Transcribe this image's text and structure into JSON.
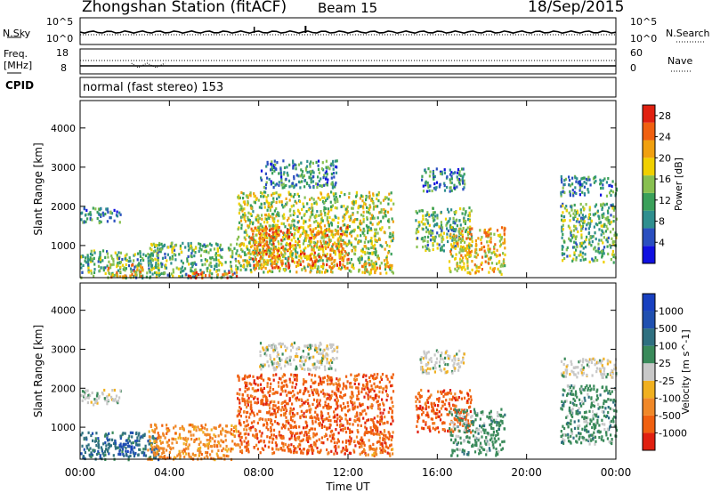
{
  "header": {
    "station": "Zhongshan Station (fitACF)",
    "beam": "Beam 15",
    "date": "18/Sep/2015"
  },
  "panels": {
    "nsky": {
      "label": "N.Sky",
      "right_label": "N.Search",
      "left_ticks": [
        "10^5",
        "10^0"
      ],
      "right_ticks": [
        "10^5",
        "10^0"
      ]
    },
    "freq": {
      "label_line1": "Freq.",
      "label_line2": "[MHz]",
      "right_label": "Nave",
      "left_ticks": [
        "18",
        "8"
      ],
      "right_ticks": [
        "60",
        "0"
      ]
    },
    "cpid": {
      "label": "CPID",
      "text": "normal (fast stereo) 153"
    }
  },
  "colors": {
    "power": [
      "#1010e0",
      "#2a4fc0",
      "#2f8f8f",
      "#3aa05a",
      "#88c050",
      "#f0d000",
      "#f0a010",
      "#f06010",
      "#e02010"
    ],
    "velocity": [
      "#e02010",
      "#f06010",
      "#f08828",
      "#f0b020",
      "#c8c8c8",
      "#3a8a5a",
      "#2f7080",
      "#2050b0",
      "#1840c0"
    ]
  },
  "chart_data": [
    {
      "type": "heatmap",
      "title": "",
      "xlabel": "",
      "ylabel": "Slant Range [km]",
      "x_ticks": [
        "00:00",
        "04:00",
        "08:00",
        "12:00",
        "16:00",
        "20:00",
        "00:00"
      ],
      "xlim_hours": [
        0,
        24
      ],
      "ylim": [
        180,
        4700
      ],
      "y_ticks": [
        1000,
        2000,
        3000,
        4000
      ],
      "colorbar_label": "Power [dB]",
      "colorbar_ticks": [
        4,
        8,
        12,
        16,
        20,
        24,
        28
      ],
      "colorbar_range": [
        0,
        30
      ],
      "regions": [
        {
          "t0": 0.0,
          "t1": 1.8,
          "r0": 1600,
          "r1": 2000,
          "value": 8
        },
        {
          "t0": 0.0,
          "t1": 3.5,
          "r0": 200,
          "r1": 900,
          "value": 12
        },
        {
          "t0": 1.2,
          "t1": 2.8,
          "r0": 200,
          "r1": 550,
          "value": 20
        },
        {
          "t0": 3.0,
          "t1": 7.0,
          "r0": 200,
          "r1": 1100,
          "value": 12
        },
        {
          "t0": 4.8,
          "t1": 7.0,
          "r0": 200,
          "r1": 350,
          "value": 28
        },
        {
          "t0": 7.0,
          "t1": 14.0,
          "r0": 350,
          "r1": 2400,
          "value": 16
        },
        {
          "t0": 7.5,
          "t1": 12.0,
          "r0": 450,
          "r1": 1500,
          "value": 24
        },
        {
          "t0": 8.0,
          "t1": 11.5,
          "r0": 2500,
          "r1": 3200,
          "value": 8
        },
        {
          "t0": 12.5,
          "t1": 14.0,
          "r0": 300,
          "r1": 550,
          "value": 20
        },
        {
          "t0": 15.2,
          "t1": 17.2,
          "r0": 2400,
          "r1": 3000,
          "value": 8
        },
        {
          "t0": 15.0,
          "t1": 17.5,
          "r0": 900,
          "r1": 2000,
          "value": 12
        },
        {
          "t0": 16.5,
          "t1": 19.0,
          "r0": 300,
          "r1": 1500,
          "value": 20
        },
        {
          "t0": 21.5,
          "t1": 24.0,
          "r0": 2300,
          "r1": 2800,
          "value": 8
        },
        {
          "t0": 21.5,
          "t1": 24.0,
          "r0": 600,
          "r1": 2100,
          "value": 12
        }
      ]
    },
    {
      "type": "heatmap",
      "title": "",
      "xlabel": "Time UT",
      "ylabel": "Slant Range [km]",
      "x_ticks": [
        "00:00",
        "04:00",
        "08:00",
        "12:00",
        "16:00",
        "20:00",
        "00:00"
      ],
      "xlim_hours": [
        0,
        24
      ],
      "ylim": [
        180,
        4700
      ],
      "y_ticks": [
        1000,
        2000,
        3000,
        4000
      ],
      "colorbar_label": "Velocity [m s^-1]",
      "colorbar_ticks": [
        "-1000",
        "-500",
        "-100",
        "-25",
        "25",
        "100",
        "500",
        "1000"
      ],
      "regions": [
        {
          "t0": 0.0,
          "t1": 1.8,
          "r0": 1600,
          "r1": 2000,
          "value": 4
        },
        {
          "t0": 0.0,
          "t1": 3.5,
          "r0": 200,
          "r1": 900,
          "value": 6
        },
        {
          "t0": 1.5,
          "t1": 2.5,
          "r0": 300,
          "r1": 700,
          "value": 7
        },
        {
          "t0": 3.0,
          "t1": 7.0,
          "r0": 200,
          "r1": 1100,
          "value": 2
        },
        {
          "t0": 7.0,
          "t1": 14.0,
          "r0": 350,
          "r1": 2400,
          "value": 1
        },
        {
          "t0": 8.0,
          "t1": 11.5,
          "r0": 2500,
          "r1": 3200,
          "value": 4
        },
        {
          "t0": 12.5,
          "t1": 14.0,
          "r0": 300,
          "r1": 550,
          "value": 2
        },
        {
          "t0": 15.2,
          "t1": 17.2,
          "r0": 2400,
          "r1": 3000,
          "value": 4
        },
        {
          "t0": 15.0,
          "t1": 17.5,
          "r0": 900,
          "r1": 2000,
          "value": 1
        },
        {
          "t0": 16.5,
          "t1": 19.0,
          "r0": 300,
          "r1": 1500,
          "value": 5
        },
        {
          "t0": 21.5,
          "t1": 24.0,
          "r0": 2300,
          "r1": 2800,
          "value": 4
        },
        {
          "t0": 21.5,
          "t1": 24.0,
          "r0": 600,
          "r1": 2100,
          "value": 5
        }
      ]
    }
  ]
}
